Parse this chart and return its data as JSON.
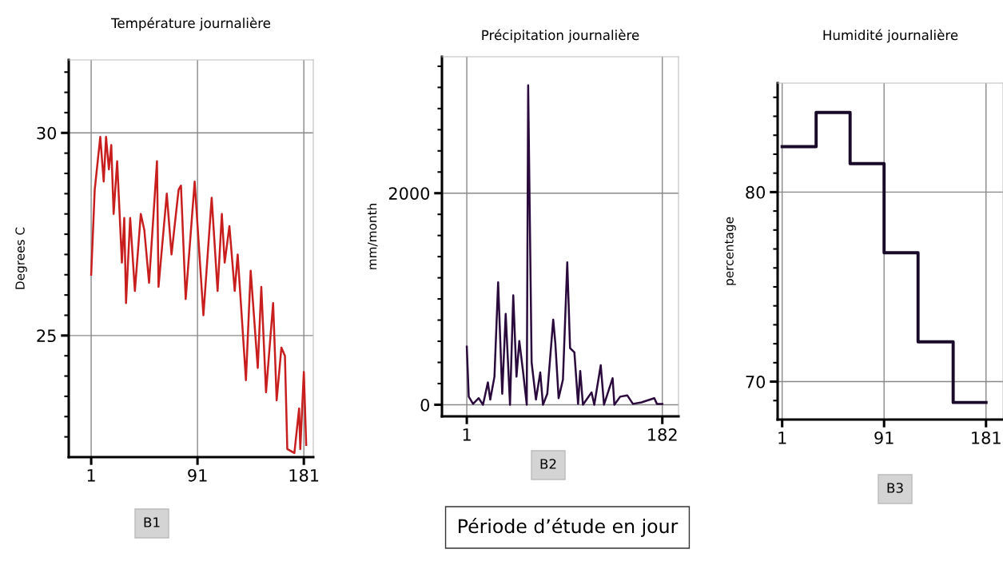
{
  "chart_data": [
    {
      "type": "line",
      "title": "Température journalière",
      "ylabel": "Degrees C",
      "annotations": [
        "B1"
      ],
      "grid": true,
      "xlim": [
        -18,
        189
      ],
      "xticks": [
        1,
        91,
        181
      ],
      "ylim": [
        22.0,
        31.8
      ],
      "yticks": [
        25,
        30,
        {
          "value": 22.5,
          "label": null
        },
        {
          "value": 23,
          "label": null
        },
        {
          "value": 23.5,
          "label": null
        },
        {
          "value": 24,
          "label": null
        },
        {
          "value": 24.5,
          "label": null
        },
        {
          "value": 25.5,
          "label": null
        },
        {
          "value": 26,
          "label": null
        },
        {
          "value": 26.5,
          "label": null
        },
        {
          "value": 27,
          "label": null
        },
        {
          "value": 27.5,
          "label": null
        },
        {
          "value": 28,
          "label": null
        },
        {
          "value": 28.5,
          "label": null
        },
        {
          "value": 29,
          "label": null
        },
        {
          "value": 29.5,
          "label": null
        },
        {
          "value": 30.5,
          "label": null
        },
        {
          "value": 31,
          "label": null
        },
        {
          "value": 31.5,
          "label": null
        }
      ],
      "x": [
        1,
        4,
        8.7,
        11.6,
        13.6,
        16,
        18,
        20,
        23,
        27,
        29,
        30.5,
        34,
        38,
        43,
        46,
        50,
        52,
        56.7,
        58,
        65,
        69,
        75,
        77,
        81,
        88.6,
        96,
        103,
        108,
        111.6,
        114,
        118,
        122.5,
        125,
        132,
        136,
        142,
        145,
        149,
        155,
        158,
        162,
        165,
        167,
        173,
        177,
        178,
        181,
        183
      ],
      "series": [
        {
          "color": "#c81e1e",
          "values": [
            26.5,
            28.6,
            29.9,
            28.8,
            29.9,
            29.1,
            29.7,
            28.0,
            29.3,
            26.8,
            27.9,
            25.8,
            27.9,
            26.1,
            28.0,
            27.6,
            26.3,
            27.2,
            29.3,
            26.2,
            28.5,
            27.0,
            28.6,
            28.7,
            25.9,
            28.8,
            25.5,
            28.4,
            26.1,
            28.0,
            26.8,
            27.7,
            26.1,
            27.0,
            23.9,
            26.6,
            24.2,
            26.2,
            23.6,
            25.8,
            23.4,
            24.7,
            24.5,
            22.2,
            22.1,
            23.2,
            22.2,
            24.1,
            22.3
          ]
        }
      ]
    },
    {
      "type": "line",
      "title": "Précipitation journalière",
      "ylabel": "mm/month",
      "annotations": [
        "B2",
        "Période d’étude en jour"
      ],
      "grid": true,
      "xlim": [
        -22,
        197
      ],
      "xticks": [
        1,
        182
      ],
      "ylim": [
        -110,
        3290
      ],
      "yticks": [
        0,
        2000,
        {
          "value": 200,
          "label": null
        },
        {
          "value": 400,
          "label": null
        },
        {
          "value": 600,
          "label": null
        },
        {
          "value": 800,
          "label": null
        },
        {
          "value": 1000,
          "label": null
        },
        {
          "value": 1200,
          "label": null
        },
        {
          "value": 1400,
          "label": null
        },
        {
          "value": 1600,
          "label": null
        },
        {
          "value": 1800,
          "label": null
        },
        {
          "value": 2200,
          "label": null
        },
        {
          "value": 2400,
          "label": null
        },
        {
          "value": 2600,
          "label": null
        },
        {
          "value": 2800,
          "label": null
        },
        {
          "value": 3000,
          "label": null
        },
        {
          "value": 3200,
          "label": null
        }
      ],
      "x": [
        1,
        2.8,
        6.8,
        12,
        16,
        20.5,
        22.7,
        26.6,
        30,
        33.8,
        37,
        41,
        44,
        47,
        49.6,
        53,
        56.5,
        57.8,
        61,
        65,
        69,
        71.5,
        75.5,
        81,
        83,
        86,
        90,
        94,
        96.6,
        100.6,
        104,
        106,
        108.5,
        116.5,
        119,
        125,
        128,
        136,
        137.6,
        143,
        149.5,
        154.8,
        162.7,
        174.6,
        177,
        182
      ],
      "series": [
        {
          "color": "#2a0a3c",
          "values": [
            549,
            76,
            8,
            62,
            0,
            211,
            49,
            265,
            1157,
            103,
            859,
            0,
            1035,
            265,
            603,
            319,
            0,
            3020,
            400,
            49,
            305,
            0,
            103,
            805,
            576,
            62,
            238,
            1346,
            535,
            495,
            8,
            319,
            0,
            116,
            0,
            373,
            0,
            251,
            0,
            76,
            89,
            8,
            22,
            62,
            8,
            8
          ]
        }
      ]
    },
    {
      "type": "step",
      "title": "Humidité journalière",
      "ylabel": "percentage",
      "annotations": [
        "B3"
      ],
      "grid": true,
      "xlim": [
        -3,
        196
      ],
      "xticks": [
        1,
        91,
        181
      ],
      "ylim": [
        68.0,
        85.75
      ],
      "yticks": [
        70,
        80,
        {
          "value": 69,
          "label": null
        },
        {
          "value": 71,
          "label": null
        },
        {
          "value": 72,
          "label": null
        },
        {
          "value": 73,
          "label": null
        },
        {
          "value": 74,
          "label": null
        },
        {
          "value": 75,
          "label": null
        },
        {
          "value": 76,
          "label": null
        },
        {
          "value": 77,
          "label": null
        },
        {
          "value": 78,
          "label": null
        },
        {
          "value": 79,
          "label": null
        },
        {
          "value": 81,
          "label": null
        },
        {
          "value": 82,
          "label": null
        },
        {
          "value": 83,
          "label": null
        },
        {
          "value": 84,
          "label": null
        },
        {
          "value": 85,
          "label": null
        }
      ],
      "x": [
        1,
        31,
        61,
        91,
        121,
        152,
        181
      ],
      "series": [
        {
          "color": "#1a0a2a",
          "values": [
            82.4,
            84.2,
            81.5,
            76.8,
            72.1,
            68.9,
            68.9
          ]
        }
      ]
    }
  ]
}
